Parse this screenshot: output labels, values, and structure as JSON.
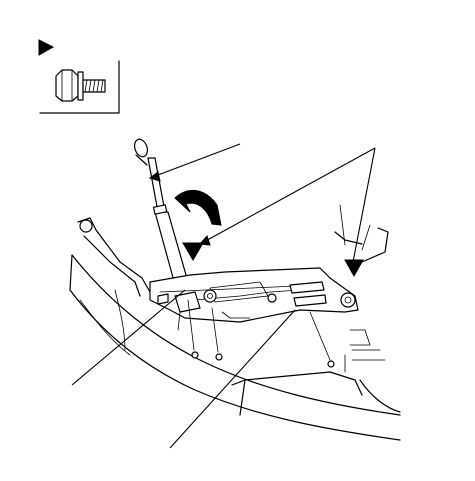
{
  "diagram": {
    "legend": {
      "marker_icon": "right-pointing-triangle-icon",
      "part_icon": "flange-bolt-icon"
    },
    "colors": {
      "ink": "#000000",
      "paper": "#ffffff"
    }
  }
}
